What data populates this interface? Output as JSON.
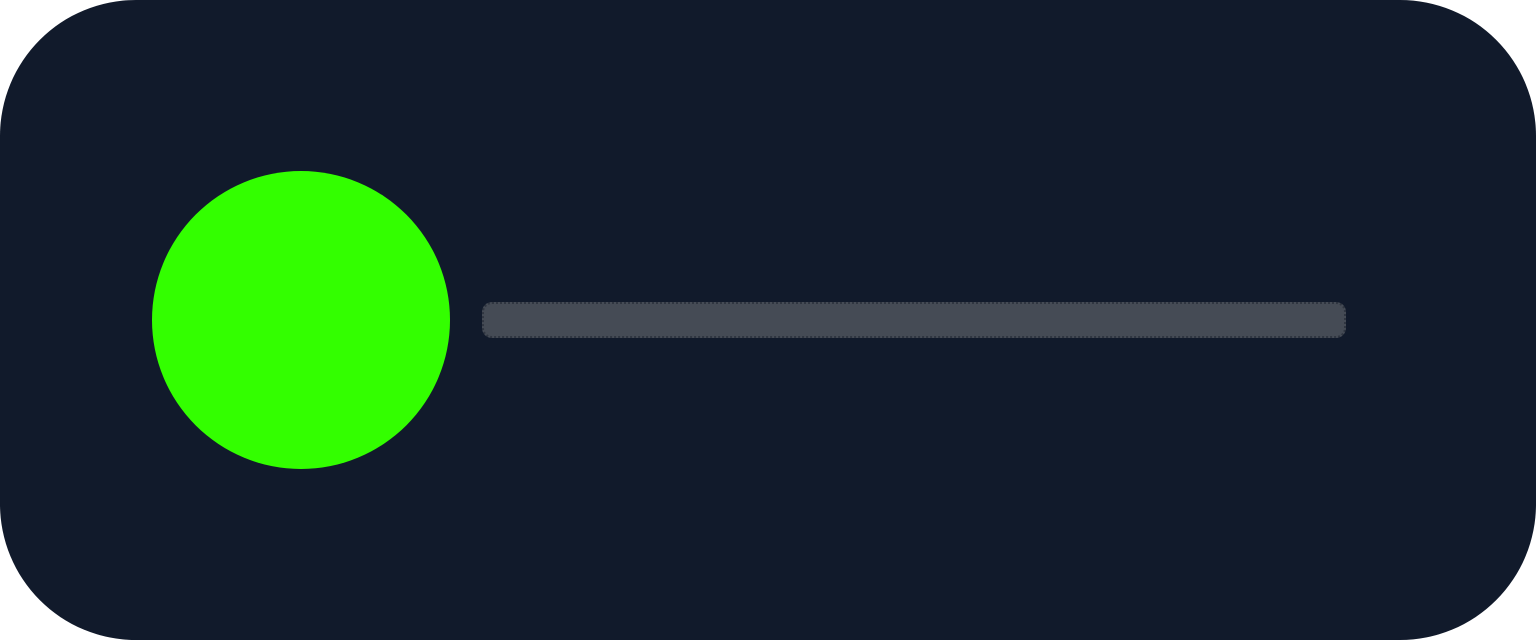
{
  "widget": {
    "status_indicator": {
      "state": "active",
      "color": "#33ff00"
    },
    "text_placeholder": {
      "text": "",
      "color": "#454b55"
    },
    "background_color": "#111a2b"
  }
}
